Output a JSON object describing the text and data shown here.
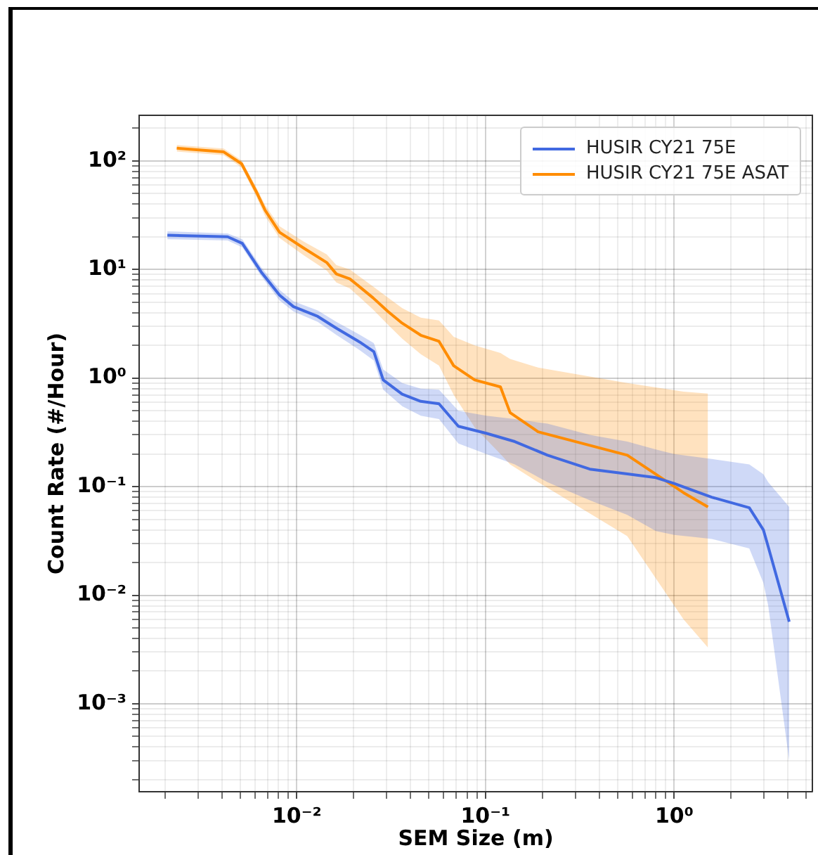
{
  "chart_data": {
    "type": "line",
    "xlabel": "SEM Size (m)",
    "ylabel": "Count Rate (#/Hour)",
    "log": "xy",
    "grid": true,
    "legend": "top right",
    "xlim": [
      0.00146,
      5.4
    ],
    "ylim": [
      0.000155,
      263
    ],
    "xticks": [
      {
        "value": 0.002,
        "label": null
      },
      {
        "value": 0.003,
        "label": null
      },
      {
        "value": 0.004,
        "label": null
      },
      {
        "value": 0.005,
        "label": null
      },
      {
        "value": 0.006,
        "label": null
      },
      {
        "value": 0.007,
        "label": null
      },
      {
        "value": 0.008,
        "label": null
      },
      {
        "value": 0.009,
        "label": null
      },
      {
        "value": 0.01,
        "label": "10⁻²"
      },
      {
        "value": 0.02,
        "label": null
      },
      {
        "value": 0.03,
        "label": null
      },
      {
        "value": 0.04,
        "label": null
      },
      {
        "value": 0.05,
        "label": null
      },
      {
        "value": 0.06,
        "label": null
      },
      {
        "value": 0.07,
        "label": null
      },
      {
        "value": 0.08,
        "label": null
      },
      {
        "value": 0.09,
        "label": null
      },
      {
        "value": 0.1,
        "label": "10⁻¹"
      },
      {
        "value": 0.2,
        "label": null
      },
      {
        "value": 0.3,
        "label": null
      },
      {
        "value": 0.4,
        "label": null
      },
      {
        "value": 0.5,
        "label": null
      },
      {
        "value": 0.6,
        "label": null
      },
      {
        "value": 0.7,
        "label": null
      },
      {
        "value": 0.8,
        "label": null
      },
      {
        "value": 0.9,
        "label": null
      },
      {
        "value": 1,
        "label": "10⁰"
      },
      {
        "value": 2,
        "label": null
      },
      {
        "value": 3,
        "label": null
      },
      {
        "value": 4,
        "label": null
      },
      {
        "value": 5,
        "label": null
      }
    ],
    "yticks": [
      {
        "value": 0.0002,
        "label": null
      },
      {
        "value": 0.0003,
        "label": null
      },
      {
        "value": 0.0004,
        "label": null
      },
      {
        "value": 0.0005,
        "label": null
      },
      {
        "value": 0.0006,
        "label": null
      },
      {
        "value": 0.0007,
        "label": null
      },
      {
        "value": 0.0008,
        "label": null
      },
      {
        "value": 0.0009,
        "label": null
      },
      {
        "value": 0.001,
        "label": "10⁻³"
      },
      {
        "value": 0.002,
        "label": null
      },
      {
        "value": 0.003,
        "label": null
      },
      {
        "value": 0.004,
        "label": null
      },
      {
        "value": 0.005,
        "label": null
      },
      {
        "value": 0.006,
        "label": null
      },
      {
        "value": 0.007,
        "label": null
      },
      {
        "value": 0.008,
        "label": null
      },
      {
        "value": 0.009,
        "label": null
      },
      {
        "value": 0.01,
        "label": "10⁻²"
      },
      {
        "value": 0.02,
        "label": null
      },
      {
        "value": 0.03,
        "label": null
      },
      {
        "value": 0.04,
        "label": null
      },
      {
        "value": 0.05,
        "label": null
      },
      {
        "value": 0.06,
        "label": null
      },
      {
        "value": 0.07,
        "label": null
      },
      {
        "value": 0.08,
        "label": null
      },
      {
        "value": 0.09,
        "label": null
      },
      {
        "value": 0.1,
        "label": "10⁻¹"
      },
      {
        "value": 0.2,
        "label": null
      },
      {
        "value": 0.3,
        "label": null
      },
      {
        "value": 0.4,
        "label": null
      },
      {
        "value": 0.5,
        "label": null
      },
      {
        "value": 0.6,
        "label": null
      },
      {
        "value": 0.7,
        "label": null
      },
      {
        "value": 0.8,
        "label": null
      },
      {
        "value": 0.9,
        "label": null
      },
      {
        "value": 1,
        "label": "10⁰"
      },
      {
        "value": 2,
        "label": null
      },
      {
        "value": 3,
        "label": null
      },
      {
        "value": 4,
        "label": null
      },
      {
        "value": 5,
        "label": null
      },
      {
        "value": 6,
        "label": null
      },
      {
        "value": 7,
        "label": null
      },
      {
        "value": 8,
        "label": null
      },
      {
        "value": 9,
        "label": null
      },
      {
        "value": 10,
        "label": "10¹"
      },
      {
        "value": 20,
        "label": null
      },
      {
        "value": 30,
        "label": null
      },
      {
        "value": 40,
        "label": null
      },
      {
        "value": 50,
        "label": null
      },
      {
        "value": 60,
        "label": null
      },
      {
        "value": 70,
        "label": null
      },
      {
        "value": 80,
        "label": null
      },
      {
        "value": 90,
        "label": null
      },
      {
        "value": 100,
        "label": "10²"
      },
      {
        "value": 200,
        "label": null
      }
    ],
    "series": [
      {
        "name": "HUSIR CY21 75E",
        "color": "#4169e1",
        "x": [
          0.00206,
          0.0043,
          0.00514,
          0.00647,
          0.0081,
          0.0096,
          0.0129,
          0.0162,
          0.0216,
          0.0256,
          0.0287,
          0.0362,
          0.0454,
          0.0567,
          0.0718,
          0.101,
          0.143,
          0.213,
          0.357,
          0.564,
          0.8,
          1,
          1.58,
          2.5,
          2.97,
          3.15,
          4.07
        ],
        "values": [
          20.7,
          20,
          17.4,
          9.5,
          5.8,
          4.55,
          3.7,
          2.88,
          2.14,
          1.75,
          0.96,
          0.71,
          0.61,
          0.58,
          0.36,
          0.31,
          0.26,
          0.195,
          0.145,
          0.131,
          0.121,
          0.107,
          0.08,
          0.064,
          0.04,
          0.028,
          0.0057
        ],
        "lower": [
          19,
          18.5,
          16,
          8.7,
          5.2,
          4.1,
          3.3,
          2.5,
          1.8,
          1.45,
          0.78,
          0.55,
          0.45,
          0.42,
          0.25,
          0.2,
          0.16,
          0.11,
          0.075,
          0.055,
          0.039,
          0.036,
          0.033,
          0.027,
          0.013,
          0.008,
          0.0003
        ],
        "upper": [
          22.5,
          21.5,
          19,
          10.5,
          6.5,
          5.1,
          4.2,
          3.3,
          2.5,
          2.1,
          1.2,
          0.9,
          0.8,
          0.78,
          0.5,
          0.45,
          0.42,
          0.38,
          0.3,
          0.26,
          0.22,
          0.2,
          0.18,
          0.16,
          0.13,
          0.11,
          0.065
        ]
      },
      {
        "name": "HUSIR CY21 75E ASAT",
        "color": "#ff8c00",
        "x": [
          0.00231,
          0.0041,
          0.0051,
          0.0061,
          0.0068,
          0.0081,
          0.0109,
          0.0144,
          0.0162,
          0.0191,
          0.0253,
          0.0304,
          0.0362,
          0.0454,
          0.0567,
          0.0678,
          0.0877,
          0.12,
          0.135,
          0.19,
          0.564,
          1.12,
          1.51
        ],
        "values": [
          131,
          121,
          94,
          52,
          35,
          22,
          15.7,
          11.6,
          9.1,
          8.2,
          5.5,
          4.1,
          3.2,
          2.48,
          2.18,
          1.3,
          0.96,
          0.83,
          0.48,
          0.32,
          0.195,
          0.088,
          0.065
        ],
        "lower": [
          122,
          113,
          87,
          47,
          31,
          19.5,
          13.5,
          9.8,
          7.6,
          6.7,
          4.3,
          3.1,
          2.3,
          1.66,
          1.3,
          0.7,
          0.35,
          0.2,
          0.16,
          0.11,
          0.035,
          0.006,
          0.0033
        ],
        "upper": [
          140,
          130,
          101,
          57,
          39,
          25,
          18,
          13.8,
          11,
          10,
          7,
          5.5,
          4.4,
          3.6,
          3.4,
          2.4,
          2,
          1.7,
          1.5,
          1.25,
          0.9,
          0.75,
          0.72
        ]
      }
    ]
  }
}
